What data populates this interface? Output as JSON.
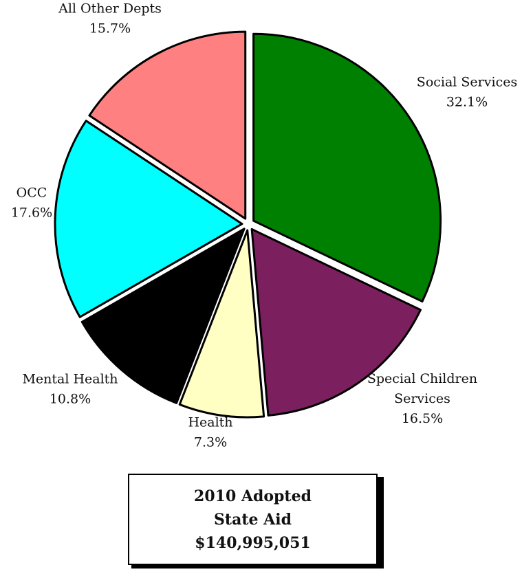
{
  "chart_data": {
    "type": "pie",
    "slices": [
      {
        "label_lines": [
          "Social Services"
        ],
        "value_label": "32.1%",
        "value": 32.1,
        "color": "#008000"
      },
      {
        "label_lines": [
          "Special Children",
          "Services"
        ],
        "value_label": "16.5%",
        "value": 16.5,
        "color": "#7B1F5E"
      },
      {
        "label_lines": [
          "Health"
        ],
        "value_label": "7.3%",
        "value": 7.3,
        "color": "#FFFFC4"
      },
      {
        "label_lines": [
          "Mental Health"
        ],
        "value_label": "10.8%",
        "value": 10.8,
        "color": "#000000"
      },
      {
        "label_lines": [
          "OCC"
        ],
        "value_label": "17.6%",
        "value": 17.6,
        "color": "#00FFFF"
      },
      {
        "label_lines": [
          "All Other Depts"
        ],
        "value_label": "15.7%",
        "value": 15.7,
        "color": "#FF8080"
      }
    ],
    "start": "12 o'clock",
    "direction": "clockwise",
    "exploded": true
  },
  "title_box": {
    "line1": "2010 Adopted",
    "line2": "State Aid",
    "line3": "$140,995,051"
  }
}
